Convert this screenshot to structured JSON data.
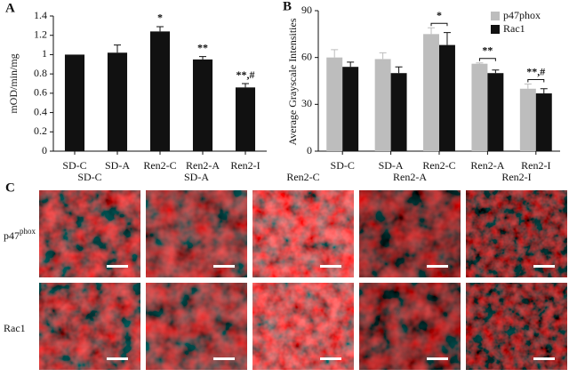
{
  "chart_data": [
    {
      "type": "bar",
      "panel": "A",
      "ylabel": "mOD/min/mg",
      "categories": [
        "SD-C",
        "SD-A",
        "Ren2-C",
        "Ren2-A",
        "Ren2-I"
      ],
      "values": [
        1.0,
        1.02,
        1.24,
        0.95,
        0.66
      ],
      "errors": [
        0,
        0.08,
        0.05,
        0.03,
        0.04
      ],
      "annotations": [
        null,
        null,
        "*",
        "**",
        "**,#"
      ],
      "color": "#111111",
      "ylim": [
        0,
        1.4
      ],
      "yticks": [
        0,
        0.2,
        0.4,
        0.6,
        0.8,
        1,
        1.2,
        1.4
      ]
    },
    {
      "type": "grouped-bar",
      "panel": "B",
      "ylabel": "Average Grayscale Intensities",
      "categories": [
        "SD-C",
        "SD-A",
        "Ren2-C",
        "Ren2-A",
        "Ren2-I"
      ],
      "series": [
        {
          "name": "p47phox",
          "color": "#bdbdbd",
          "values": [
            60,
            59,
            75,
            56,
            40
          ],
          "errors": [
            5,
            4,
            4,
            0.5,
            3
          ]
        },
        {
          "name": "Rac1",
          "color": "#111111",
          "values": [
            54,
            50,
            68,
            50,
            37
          ],
          "errors": [
            3,
            4,
            8,
            2,
            3
          ]
        }
      ],
      "annotations": [
        null,
        null,
        "*",
        "**",
        "**,#"
      ],
      "ylim": [
        0,
        90
      ],
      "yticks": [
        0,
        30,
        60,
        90
      ],
      "legend": "upper right"
    }
  ],
  "images": {
    "panel": "C",
    "columns": [
      "SD-C",
      "SD-A",
      "Ren2-C",
      "Ren2-A",
      "Ren2-I"
    ],
    "rows": [
      {
        "label": "p47",
        "superscript": "phox"
      },
      {
        "label": "Rac1"
      }
    ]
  }
}
